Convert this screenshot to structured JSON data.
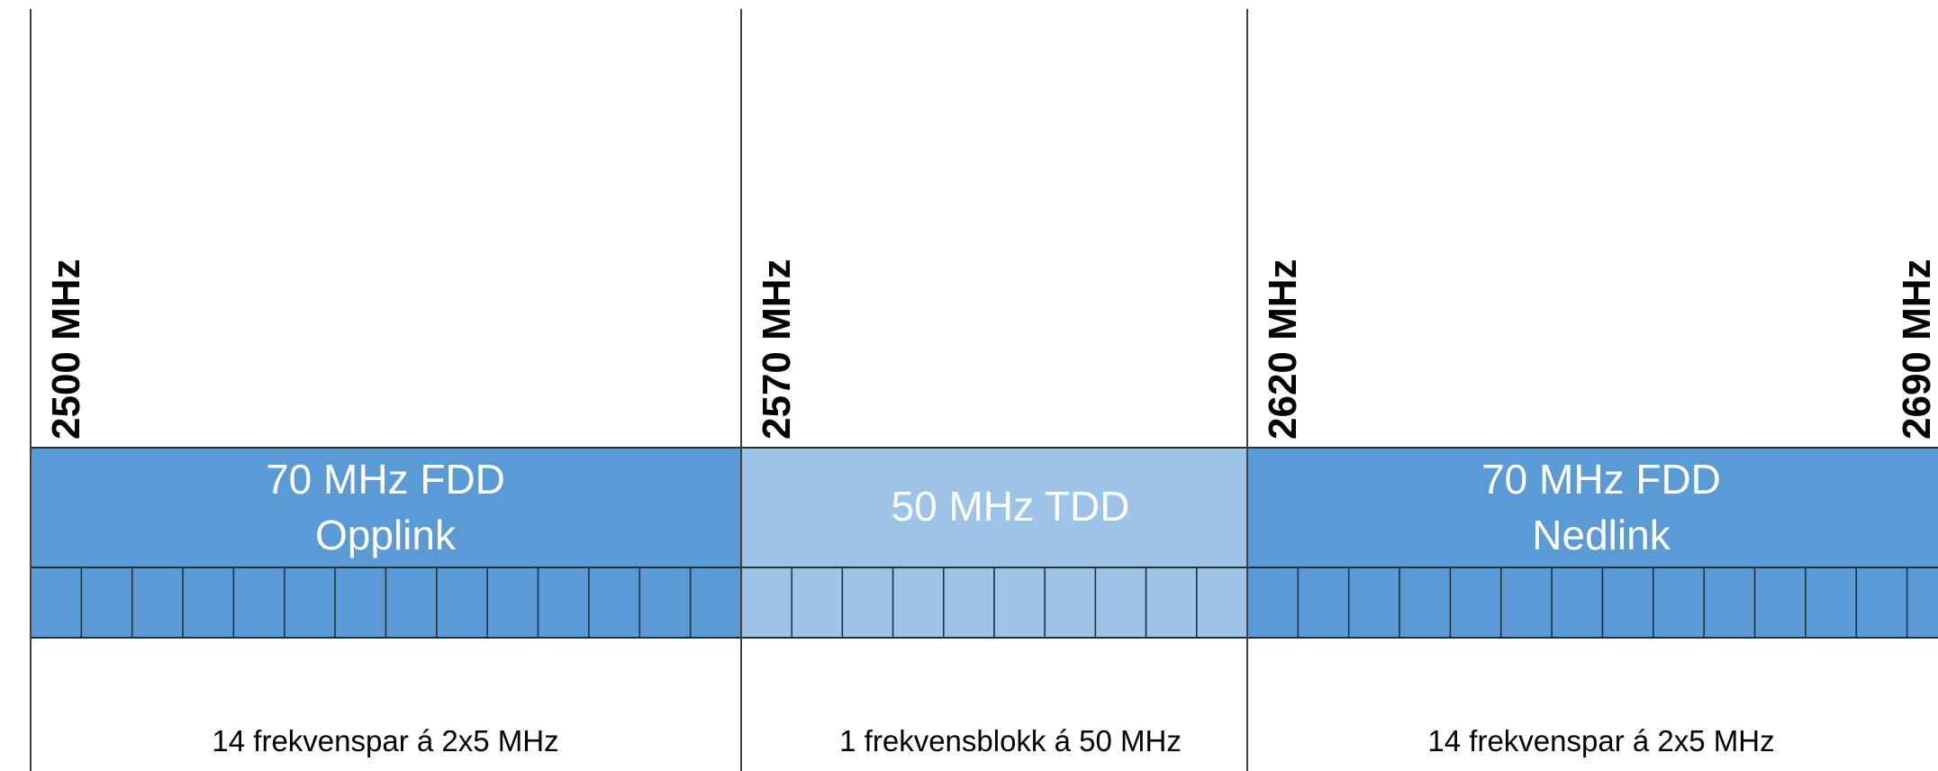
{
  "frequencies": [
    "2500 MHz",
    "2570 MHz",
    "2620 MHz",
    "2690 MHz"
  ],
  "bands": [
    {
      "lines": [
        "70 MHz FDD",
        "Opplink"
      ],
      "blocks": 14,
      "caption": "14 frekvenspar á 2x5 MHz",
      "color": "#5b9bd5"
    },
    {
      "lines": [
        "50 MHz TDD"
      ],
      "blocks": 10,
      "caption": "1 frekvensblokk á 50 MHz",
      "color": "#9dc3e6"
    },
    {
      "lines": [
        "70 MHz FDD",
        "Nedlink"
      ],
      "blocks": 14,
      "caption": "14 frekvenspar á 2x5 MHz",
      "color": "#5b9bd5"
    }
  ],
  "colors": {
    "outline": "#1f3040",
    "divider": "#404040",
    "band_text": "#ffffff"
  }
}
